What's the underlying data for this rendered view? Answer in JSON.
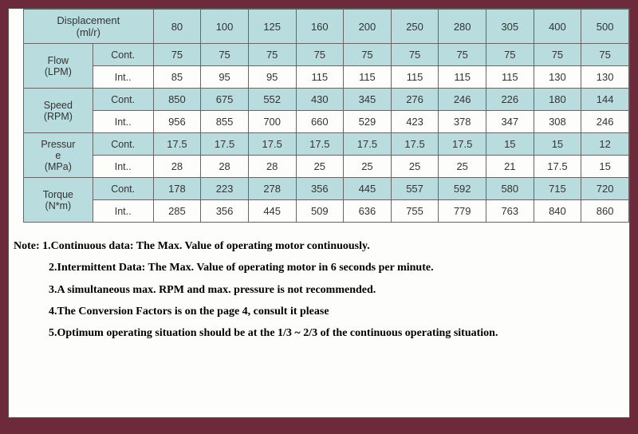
{
  "table": {
    "displacement_header": "Displacement\n(ml/r)",
    "displacements": [
      "80",
      "100",
      "125",
      "160",
      "200",
      "250",
      "280",
      "305",
      "400",
      "500"
    ],
    "groups": [
      {
        "label": "Flow\n(LPM)",
        "rows": [
          {
            "sub": "Cont.",
            "alt": true,
            "vals": [
              "75",
              "75",
              "75",
              "75",
              "75",
              "75",
              "75",
              "75",
              "75",
              "75"
            ]
          },
          {
            "sub": "Int..",
            "alt": false,
            "vals": [
              "85",
              "95",
              "95",
              "115",
              "115",
              "115",
              "115",
              "115",
              "130",
              "130"
            ]
          }
        ]
      },
      {
        "label": "Speed\n(RPM)",
        "rows": [
          {
            "sub": "Cont.",
            "alt": true,
            "vals": [
              "850",
              "675",
              "552",
              "430",
              "345",
              "276",
              "246",
              "226",
              "180",
              "144"
            ]
          },
          {
            "sub": "Int..",
            "alt": false,
            "vals": [
              "956",
              "855",
              "700",
              "660",
              "529",
              "423",
              "378",
              "347",
              "308",
              "246"
            ]
          }
        ]
      },
      {
        "label": "Pressur\ne\n(MPa)",
        "rows": [
          {
            "sub": "Cont.",
            "alt": true,
            "vals": [
              "17.5",
              "17.5",
              "17.5",
              "17.5",
              "17.5",
              "17.5",
              "17.5",
              "15",
              "15",
              "12"
            ]
          },
          {
            "sub": "Int..",
            "alt": false,
            "vals": [
              "28",
              "28",
              "28",
              "25",
              "25",
              "25",
              "25",
              "21",
              "17.5",
              "15"
            ]
          }
        ]
      },
      {
        "label": "Torque\n(N*m)",
        "rows": [
          {
            "sub": "Cont.",
            "alt": true,
            "vals": [
              "178",
              "223",
              "278",
              "356",
              "445",
              "557",
              "592",
              "580",
              "715",
              "720"
            ]
          },
          {
            "sub": "Int..",
            "alt": false,
            "vals": [
              "285",
              "356",
              "445",
              "509",
              "636",
              "755",
              "779",
              "763",
              "840",
              "860"
            ]
          }
        ]
      }
    ]
  },
  "notes": {
    "lead": "Note: 1.Continuous data: The Max. Value of operating motor continuously.",
    "items": [
      "2.Intermittent Data: The Max. Value of operating motor in 6 seconds per minute.",
      "3.A simultaneous max. RPM and max. pressure is not recommended.",
      "4.The Conversion Factors is on the page 4, consult it please",
      "5.Optimum operating situation should be at the 1/3 ~ 2/3 of the continuous operating situation."
    ]
  },
  "style": {
    "header_bg": "#b9dcde",
    "border_color": "#666",
    "page_bg": "#6d2a3a",
    "inner_bg": "#fdfdfc",
    "col_param_w": 80,
    "col_sub_w": 70,
    "col_val_w": 55
  }
}
